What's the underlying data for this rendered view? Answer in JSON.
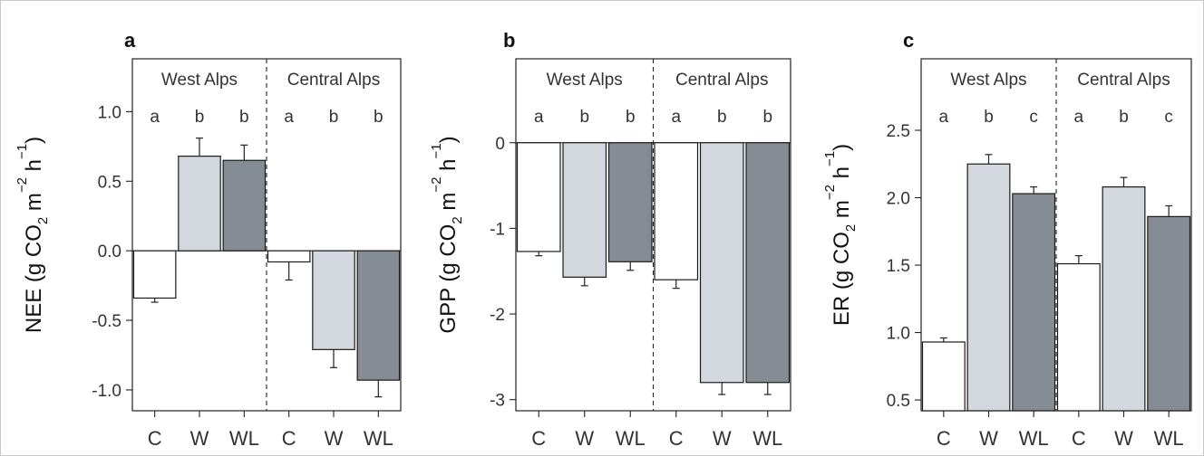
{
  "figure": {
    "bar_colors": {
      "C": "#ffffff",
      "W": "#d3d8de",
      "WL": "#868c94"
    },
    "bar_stroke": "#1a1a1a"
  },
  "chart_data": [
    {
      "panel_label": "a",
      "type": "bar",
      "ylabel_parts": [
        "NEE (g CO",
        "2",
        " m",
        "−2",
        " h",
        "−1",
        ")"
      ],
      "ylim": [
        -1.15,
        1.38
      ],
      "yticks": [
        -1.0,
        -0.5,
        0.0,
        0.5,
        1.0
      ],
      "ytick_labels": [
        "-1.0",
        "-0.5",
        "0.0",
        "0.5",
        "1.0"
      ],
      "zero_line": true,
      "groups": [
        {
          "label": "West Alps",
          "categories": [
            "C",
            "W",
            "WL"
          ],
          "values": [
            -0.34,
            0.68,
            0.65
          ],
          "errors": [
            0.03,
            0.13,
            0.11
          ],
          "letters": [
            "a",
            "b",
            "b"
          ]
        },
        {
          "label": "Central Alps",
          "categories": [
            "C",
            "W",
            "WL"
          ],
          "values": [
            -0.08,
            -0.71,
            -0.93
          ],
          "errors": [
            0.13,
            0.13,
            0.12
          ],
          "letters": [
            "a",
            "b",
            "b"
          ]
        }
      ]
    },
    {
      "panel_label": "b",
      "type": "bar",
      "ylabel_parts": [
        "GPP (g CO",
        "2",
        " m",
        "−2",
        " h",
        "−1",
        ")"
      ],
      "ylim": [
        -3.13,
        0.98
      ],
      "yticks": [
        -3,
        -2,
        -1,
        0
      ],
      "ytick_labels": [
        "-3",
        "-2",
        "-1",
        "0"
      ],
      "zero_line": true,
      "groups": [
        {
          "label": "West Alps",
          "categories": [
            "C",
            "W",
            "WL"
          ],
          "values": [
            -1.27,
            -1.57,
            -1.39
          ],
          "errors": [
            0.05,
            0.1,
            0.1
          ],
          "letters": [
            "a",
            "b",
            "b"
          ]
        },
        {
          "label": "Central Alps",
          "categories": [
            "C",
            "W",
            "WL"
          ],
          "values": [
            -1.6,
            -2.8,
            -2.8
          ],
          "errors": [
            0.1,
            0.14,
            0.14
          ],
          "letters": [
            "a",
            "b",
            "b"
          ]
        }
      ]
    },
    {
      "panel_label": "c",
      "type": "bar",
      "ylabel_parts": [
        "ER (g CO",
        "2",
        " m",
        "−2",
        " h",
        "−1",
        ")"
      ],
      "ylim": [
        0.42,
        3.03
      ],
      "yticks": [
        0.5,
        1.0,
        1.5,
        2.0,
        2.5
      ],
      "ytick_labels": [
        "0.5",
        "1.0",
        "1.5",
        "2.0",
        "2.5"
      ],
      "zero_line": false,
      "groups": [
        {
          "label": "West Alps",
          "categories": [
            "C",
            "W",
            "WL"
          ],
          "values": [
            0.93,
            2.25,
            2.03
          ],
          "errors": [
            0.03,
            0.07,
            0.05
          ],
          "letters": [
            "a",
            "b",
            "c"
          ]
        },
        {
          "label": "Central Alps",
          "categories": [
            "C",
            "W",
            "WL"
          ],
          "values": [
            1.51,
            2.08,
            1.86
          ],
          "errors": [
            0.06,
            0.07,
            0.08
          ],
          "letters": [
            "a",
            "b",
            "c"
          ]
        }
      ]
    }
  ]
}
